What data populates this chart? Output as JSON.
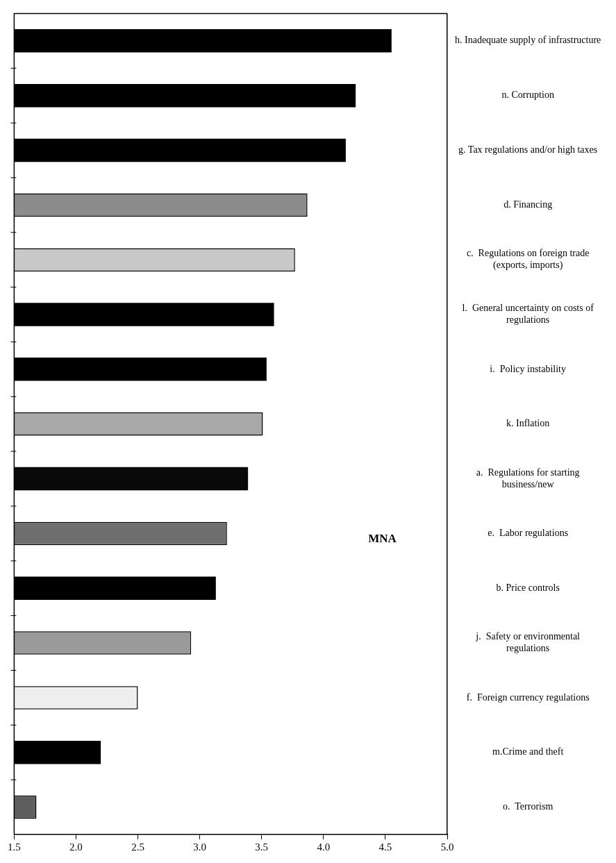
{
  "chart_data": {
    "type": "bar",
    "orientation": "horizontal",
    "categories": [
      "h. Inadequate supply of infrastructure",
      "n. Corruption",
      "g. Tax regulations and/or high taxes",
      "d. Financing",
      "c.  Regulations on foreign trade (exports, imports)",
      "l.  General uncertainty on costs of regulations",
      "i.  Policy instability",
      "k. Inflation",
      "a.  Regulations for starting business/new",
      "e.  Labor regulations",
      "b. Price controls",
      "j.  Safety or environmental regulations",
      "f.  Foreign currency regulations",
      "m.Crime and theft",
      "o.  Terrorism"
    ],
    "values": [
      4.55,
      4.26,
      4.18,
      3.87,
      3.77,
      3.6,
      3.54,
      3.51,
      3.39,
      3.22,
      3.13,
      2.93,
      2.5,
      2.2,
      1.68
    ],
    "colors": [
      "#000000",
      "#000000",
      "#000000",
      "#8c8c8c",
      "#c8c8c8",
      "#000000",
      "#000000",
      "#a8a8a8",
      "#0a0a0a",
      "#6e6e6e",
      "#000000",
      "#9a9a9a",
      "#eeeeee",
      "#000000",
      "#5e5e5e"
    ],
    "xlim": [
      1.5,
      5.0
    ],
    "xticks": [
      {
        "value": 1.5,
        "label": "1.5"
      },
      {
        "value": 2,
        "label": "2.0"
      },
      {
        "value": 2.5,
        "label": "2.5"
      },
      {
        "value": 3,
        "label": "3.0"
      },
      {
        "value": 3.5,
        "label": "3.5"
      },
      {
        "value": 4,
        "label": "4.0"
      },
      {
        "value": 4.5,
        "label": "4.5"
      },
      {
        "value": 5,
        "label": "5.0"
      }
    ],
    "grid": false,
    "legend": false,
    "annotations": [
      "MNA"
    ]
  }
}
